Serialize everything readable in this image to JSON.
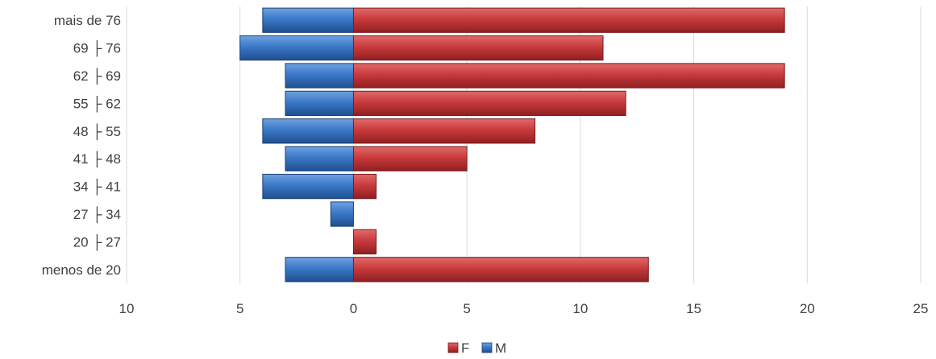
{
  "chart_data": {
    "type": "bar",
    "orientation": "horizontal",
    "stacked": true,
    "categories": [
      "menos de 20",
      "20 ├ 27",
      "27 ├ 34",
      "34 ├ 41",
      "41 ├ 48",
      "48 ├ 55",
      "55 ├ 62",
      "62 ├ 69",
      "69 ├ 76",
      "mais de 76"
    ],
    "series": [
      {
        "name": "F",
        "values": [
          13,
          1,
          0,
          1,
          5,
          8,
          12,
          19,
          11,
          19
        ],
        "color": "#c0393b"
      },
      {
        "name": "M",
        "values": [
          -3,
          0,
          -1,
          -4,
          -3,
          -4,
          -3,
          -3,
          -5,
          -4
        ],
        "color": "#3b78c8"
      }
    ],
    "xlim": [
      -10,
      25
    ],
    "xticks": [
      -10,
      -5,
      0,
      5,
      10,
      15,
      20,
      25
    ],
    "xtick_labels": [
      "10",
      "5",
      "0",
      "5",
      "10",
      "15",
      "20",
      "25"
    ],
    "grid": true,
    "legend": "bottom",
    "title": "",
    "xlabel": "",
    "ylabel": ""
  }
}
